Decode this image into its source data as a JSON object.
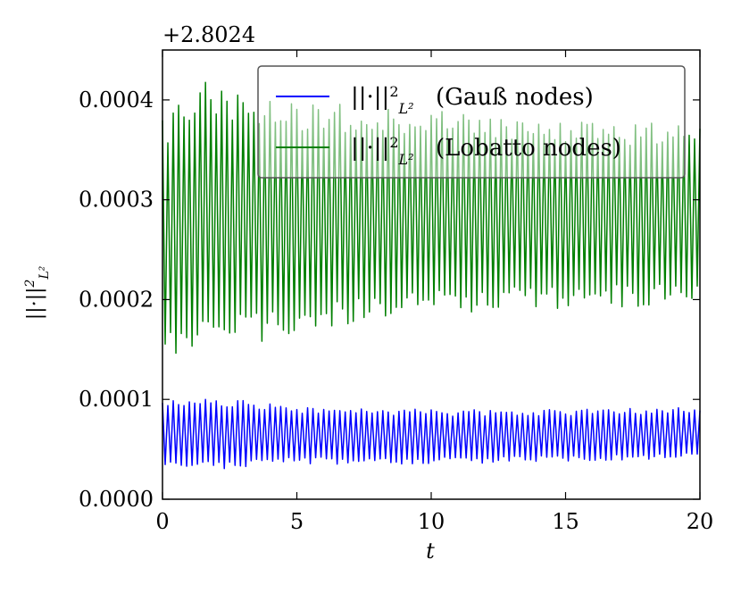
{
  "chart_data": {
    "type": "line",
    "offset_text": "+2.8024",
    "xlabel": "t",
    "ylabel": "||·||²_L²",
    "xlim": [
      0,
      20
    ],
    "ylim": [
      0,
      0.00045
    ],
    "xticks": [
      0,
      5,
      10,
      15,
      20
    ],
    "xtick_labels": [
      "0",
      "5",
      "10",
      "15",
      "20"
    ],
    "yticks": [
      0,
      0.0001,
      0.0002,
      0.0003,
      0.0004
    ],
    "ytick_labels": [
      "0.0000",
      "0.0001",
      "0.0002",
      "0.0003",
      "0.0004"
    ],
    "grid": false,
    "legend_position": "top-right",
    "series": [
      {
        "name": "||·||²_L² (Gauß nodes)",
        "legend_math": "||·||",
        "legend_text": "(Gauß nodes)",
        "color": "#0000ff",
        "description": "fast oscillation between ~0.00003 and ~0.0001",
        "t_start": 0,
        "t_end": 20,
        "period": 0.2,
        "upper_envelope": [
          [
            0,
            9.8e-05
          ],
          [
            2,
            0.000102
          ],
          [
            5,
            9.3e-05
          ],
          [
            10,
            9e-05
          ],
          [
            15,
            9e-05
          ],
          [
            20,
            9.2e-05
          ]
        ],
        "lower_envelope": [
          [
            0,
            3e-05
          ],
          [
            2,
            3e-05
          ],
          [
            5,
            3.5e-05
          ],
          [
            10,
            3.5e-05
          ],
          [
            15,
            3.8e-05
          ],
          [
            20,
            4e-05
          ]
        ]
      },
      {
        "name": "||·||²_L² (Lobatto nodes)",
        "legend_math": "||·||",
        "legend_text": "(Lobatto nodes)",
        "color": "#007f00",
        "description": "fast oscillation between ~0.00015 and ~0.0004",
        "t_start": 0,
        "t_end": 20,
        "period": 0.2,
        "upper_envelope": [
          [
            0,
            0.00038
          ],
          [
            1.5,
            0.00042
          ],
          [
            4,
            0.0004
          ],
          [
            10,
            0.00039
          ],
          [
            15,
            0.00038
          ],
          [
            20,
            0.000375
          ]
        ],
        "lower_envelope": [
          [
            0,
            0.000145
          ],
          [
            1.5,
            0.000145
          ],
          [
            4,
            0.00016
          ],
          [
            10,
            0.000185
          ],
          [
            15,
            0.00019
          ],
          [
            20,
            0.000195
          ]
        ]
      }
    ]
  }
}
